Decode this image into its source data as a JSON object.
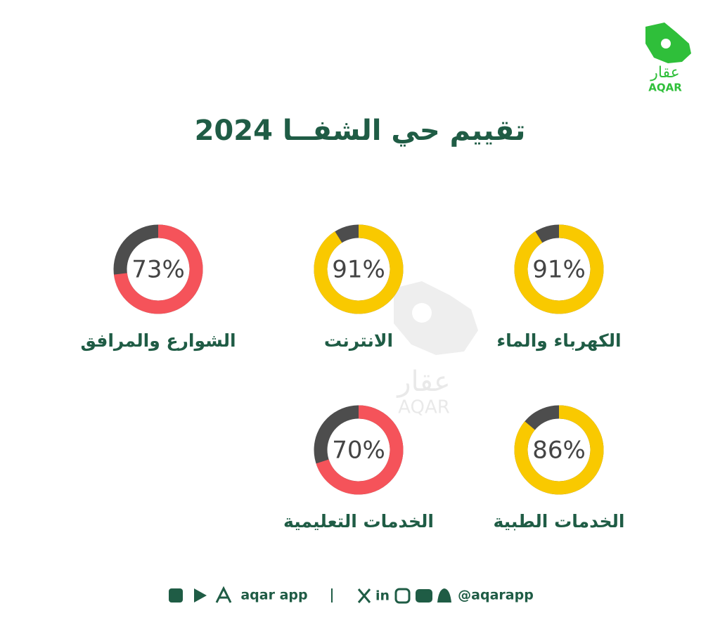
{
  "logo": {
    "arabic": "عقار",
    "latin": "AQAR"
  },
  "title": "تقييم حي الشفــا 2024",
  "ratings": [
    {
      "label": "الكهرباء والماء",
      "value": 91,
      "value_label": "91%",
      "color": "#f9c900"
    },
    {
      "label": "الانترنت",
      "value": 91,
      "value_label": "91%",
      "color": "#f9c900"
    },
    {
      "label": "الشوارع والمرافق",
      "value": 73,
      "value_label": "73%",
      "color": "#f5535a"
    },
    {
      "label": "الخدمات الطبية",
      "value": 86,
      "value_label": "86%",
      "color": "#f9c900"
    },
    {
      "label": "الخدمات التعليمية",
      "value": 70,
      "value_label": "70%",
      "color": "#f5535a"
    }
  ],
  "footer": {
    "app": "aqar app",
    "handle": "@aqarapp"
  }
}
